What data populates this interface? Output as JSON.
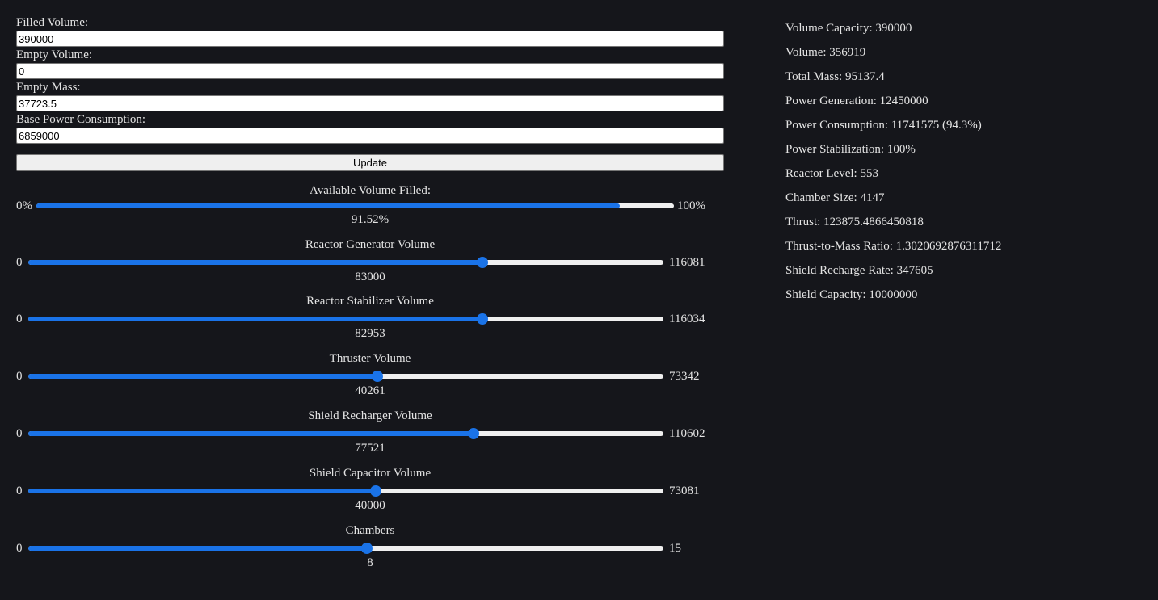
{
  "inputs": [
    {
      "label": "Filled Volume:",
      "value": "390000"
    },
    {
      "label": "Empty Volume:",
      "value": "0"
    },
    {
      "label": "Empty Mass:",
      "value": "37723.5"
    },
    {
      "label": "Base Power Consumption:",
      "value": "6859000"
    }
  ],
  "update_label": "Update",
  "available_volume": {
    "title": "Available Volume Filled:",
    "min_label": "0%",
    "max_label": "100%",
    "value": "91.52%",
    "fraction": 0.9152
  },
  "sliders": [
    {
      "title": "Reactor Generator Volume",
      "min": "0",
      "max": "116081",
      "value": "83000",
      "fraction": 0.715
    },
    {
      "title": "Reactor Stabilizer Volume",
      "min": "0",
      "max": "116034",
      "value": "82953",
      "fraction": 0.715
    },
    {
      "title": "Thruster Volume",
      "min": "0",
      "max": "73342",
      "value": "40261",
      "fraction": 0.549
    },
    {
      "title": "Shield Recharger Volume",
      "min": "0",
      "max": "110602",
      "value": "77521",
      "fraction": 0.701
    },
    {
      "title": "Shield Capacitor Volume",
      "min": "0",
      "max": "73081",
      "value": "40000",
      "fraction": 0.547
    },
    {
      "title": "Chambers",
      "min": "0",
      "max": "15",
      "value": "8",
      "fraction": 0.533
    }
  ],
  "stats": [
    "Volume Capacity: 390000",
    "Volume: 356919",
    "Total Mass: 95137.4",
    "Power Generation: 12450000",
    "Power Consumption: 11741575 (94.3%)",
    "Power Stabilization: 100%",
    "Reactor Level: 553",
    "Chamber Size: 4147",
    "Thrust: 123875.4866450818",
    "Thrust-to-Mass Ratio: 1.3020692876311712",
    "Shield Recharge Rate: 347605",
    "Shield Capacity: 10000000"
  ],
  "colors": {
    "background": "#15161b",
    "accent": "#1a73e8",
    "text": "#e3e3e3"
  }
}
